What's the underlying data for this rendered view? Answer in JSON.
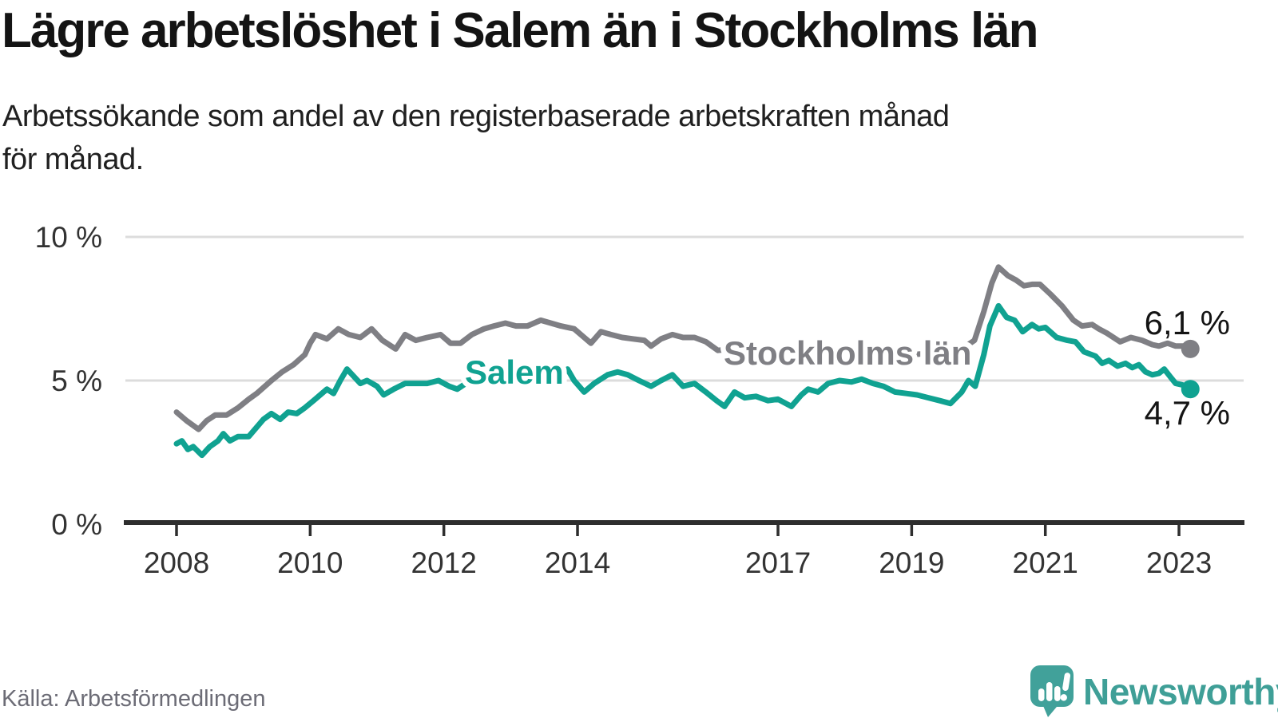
{
  "chart_data": {
    "type": "line",
    "title": "Lägre arbetslöshet i Salem än i Stockholms län",
    "subtitle_lines": [
      "Arbetssökande som andel av den registerbaserade arbetskraften månad",
      "för månad."
    ],
    "unit": "%",
    "ylim": [
      0,
      10
    ],
    "grid": "horizontal-only",
    "y_ticks": [
      {
        "value": 0,
        "label": "0 %"
      },
      {
        "value": 5,
        "label": "5 %"
      },
      {
        "value": 10,
        "label": "10 %"
      }
    ],
    "x_ticks": [
      {
        "value": 2008,
        "label": "2008"
      },
      {
        "value": 2010,
        "label": "2010"
      },
      {
        "value": 2012,
        "label": "2012"
      },
      {
        "value": 2014,
        "label": "2014"
      },
      {
        "value": 2017,
        "label": "2017"
      },
      {
        "value": 2019,
        "label": "2019"
      },
      {
        "value": 2021,
        "label": "2021"
      },
      {
        "value": 2023,
        "label": "2023"
      }
    ],
    "x_range_years": [
      2008.0,
      2023.17
    ],
    "colors": {
      "axis": "#2e2e2e",
      "grid": "#dcdcdc",
      "tick_text": "#333333"
    },
    "series": [
      {
        "name": "Stockholms län",
        "color": "#7f7f84",
        "end_label": "6,1 %",
        "end_value": 6.1,
        "points": [
          [
            2008.0,
            3.9
          ],
          [
            2008.15,
            3.6
          ],
          [
            2008.33,
            3.3
          ],
          [
            2008.45,
            3.6
          ],
          [
            2008.58,
            3.8
          ],
          [
            2008.75,
            3.8
          ],
          [
            2008.92,
            4.05
          ],
          [
            2009.08,
            4.35
          ],
          [
            2009.2,
            4.55
          ],
          [
            2009.42,
            5.0
          ],
          [
            2009.58,
            5.3
          ],
          [
            2009.75,
            5.55
          ],
          [
            2009.92,
            5.9
          ],
          [
            2010.0,
            6.3
          ],
          [
            2010.08,
            6.6
          ],
          [
            2010.25,
            6.45
          ],
          [
            2010.42,
            6.8
          ],
          [
            2010.58,
            6.6
          ],
          [
            2010.75,
            6.5
          ],
          [
            2010.92,
            6.8
          ],
          [
            2011.08,
            6.4
          ],
          [
            2011.28,
            6.1
          ],
          [
            2011.42,
            6.6
          ],
          [
            2011.58,
            6.4
          ],
          [
            2011.75,
            6.5
          ],
          [
            2011.95,
            6.6
          ],
          [
            2012.1,
            6.3
          ],
          [
            2012.25,
            6.3
          ],
          [
            2012.42,
            6.6
          ],
          [
            2012.6,
            6.8
          ],
          [
            2012.75,
            6.9
          ],
          [
            2012.92,
            7.0
          ],
          [
            2013.08,
            6.9
          ],
          [
            2013.25,
            6.9
          ],
          [
            2013.45,
            7.1
          ],
          [
            2013.6,
            7.0
          ],
          [
            2013.75,
            6.9
          ],
          [
            2013.95,
            6.8
          ],
          [
            2014.1,
            6.5
          ],
          [
            2014.2,
            6.3
          ],
          [
            2014.35,
            6.7
          ],
          [
            2014.5,
            6.6
          ],
          [
            2014.67,
            6.5
          ],
          [
            2014.83,
            6.45
          ],
          [
            2015.0,
            6.4
          ],
          [
            2015.1,
            6.2
          ],
          [
            2015.25,
            6.45
          ],
          [
            2015.42,
            6.6
          ],
          [
            2015.58,
            6.5
          ],
          [
            2015.75,
            6.5
          ],
          [
            2015.92,
            6.35
          ],
          [
            2016.1,
            6.05
          ],
          [
            2016.3,
            6.1
          ],
          [
            2016.5,
            6.1
          ],
          [
            2016.75,
            6.15
          ],
          [
            2017.0,
            6.1
          ],
          [
            2017.25,
            6.05
          ],
          [
            2017.5,
            6.0
          ],
          [
            2017.75,
            5.95
          ],
          [
            2018.0,
            5.9
          ],
          [
            2018.25,
            5.85
          ],
          [
            2018.5,
            5.85
          ],
          [
            2018.75,
            5.9
          ],
          [
            2019.0,
            5.9
          ],
          [
            2019.25,
            5.95
          ],
          [
            2019.5,
            6.0
          ],
          [
            2019.75,
            6.1
          ],
          [
            2019.94,
            6.4
          ],
          [
            2020.08,
            7.4
          ],
          [
            2020.2,
            8.4
          ],
          [
            2020.3,
            8.95
          ],
          [
            2020.44,
            8.65
          ],
          [
            2020.56,
            8.5
          ],
          [
            2020.68,
            8.3
          ],
          [
            2020.8,
            8.35
          ],
          [
            2020.92,
            8.35
          ],
          [
            2021.08,
            8.0
          ],
          [
            2021.25,
            7.6
          ],
          [
            2021.42,
            7.1
          ],
          [
            2021.55,
            6.9
          ],
          [
            2021.7,
            6.95
          ],
          [
            2021.8,
            6.8
          ],
          [
            2021.92,
            6.65
          ],
          [
            2022.12,
            6.35
          ],
          [
            2022.28,
            6.5
          ],
          [
            2022.45,
            6.4
          ],
          [
            2022.6,
            6.25
          ],
          [
            2022.7,
            6.2
          ],
          [
            2022.83,
            6.3
          ],
          [
            2022.95,
            6.2
          ],
          [
            2023.08,
            6.2
          ],
          [
            2023.17,
            6.1
          ]
        ]
      },
      {
        "name": "Salem",
        "color": "#10a291",
        "end_label": "4,7 %",
        "end_value": 4.7,
        "points": [
          [
            2008.0,
            2.8
          ],
          [
            2008.08,
            2.9
          ],
          [
            2008.17,
            2.6
          ],
          [
            2008.25,
            2.7
          ],
          [
            2008.38,
            2.4
          ],
          [
            2008.5,
            2.7
          ],
          [
            2008.62,
            2.9
          ],
          [
            2008.7,
            3.15
          ],
          [
            2008.8,
            2.9
          ],
          [
            2008.92,
            3.05
          ],
          [
            2009.08,
            3.05
          ],
          [
            2009.3,
            3.65
          ],
          [
            2009.42,
            3.85
          ],
          [
            2009.55,
            3.65
          ],
          [
            2009.67,
            3.9
          ],
          [
            2009.8,
            3.85
          ],
          [
            2009.92,
            4.05
          ],
          [
            2010.05,
            4.3
          ],
          [
            2010.25,
            4.7
          ],
          [
            2010.35,
            4.55
          ],
          [
            2010.45,
            5.0
          ],
          [
            2010.55,
            5.4
          ],
          [
            2010.67,
            5.1
          ],
          [
            2010.75,
            4.9
          ],
          [
            2010.85,
            5.0
          ],
          [
            2011.0,
            4.8
          ],
          [
            2011.1,
            4.5
          ],
          [
            2011.25,
            4.7
          ],
          [
            2011.42,
            4.9
          ],
          [
            2011.58,
            4.9
          ],
          [
            2011.75,
            4.9
          ],
          [
            2011.92,
            5.0
          ],
          [
            2012.08,
            4.8
          ],
          [
            2012.2,
            4.7
          ],
          [
            2012.33,
            4.9
          ],
          [
            2012.5,
            5.0
          ],
          [
            2012.6,
            5.1
          ],
          [
            2012.75,
            5.0
          ],
          [
            2012.92,
            5.0
          ],
          [
            2013.08,
            5.1
          ],
          [
            2013.25,
            5.2
          ],
          [
            2013.45,
            5.5
          ],
          [
            2013.58,
            5.3
          ],
          [
            2013.75,
            5.2
          ],
          [
            2013.85,
            5.4
          ],
          [
            2013.95,
            5.0
          ],
          [
            2014.1,
            4.6
          ],
          [
            2014.25,
            4.9
          ],
          [
            2014.45,
            5.2
          ],
          [
            2014.6,
            5.3
          ],
          [
            2014.75,
            5.2
          ],
          [
            2014.92,
            5.0
          ],
          [
            2015.1,
            4.8
          ],
          [
            2015.25,
            5.0
          ],
          [
            2015.42,
            5.2
          ],
          [
            2015.58,
            4.8
          ],
          [
            2015.75,
            4.9
          ],
          [
            2015.92,
            4.6
          ],
          [
            2016.08,
            4.3
          ],
          [
            2016.2,
            4.1
          ],
          [
            2016.35,
            4.6
          ],
          [
            2016.5,
            4.4
          ],
          [
            2016.67,
            4.45
          ],
          [
            2016.85,
            4.3
          ],
          [
            2017.0,
            4.35
          ],
          [
            2017.2,
            4.1
          ],
          [
            2017.35,
            4.5
          ],
          [
            2017.45,
            4.7
          ],
          [
            2017.6,
            4.6
          ],
          [
            2017.75,
            4.9
          ],
          [
            2017.92,
            5.0
          ],
          [
            2018.1,
            4.95
          ],
          [
            2018.25,
            5.05
          ],
          [
            2018.42,
            4.9
          ],
          [
            2018.58,
            4.8
          ],
          [
            2018.75,
            4.6
          ],
          [
            2018.92,
            4.55
          ],
          [
            2019.08,
            4.5
          ],
          [
            2019.25,
            4.4
          ],
          [
            2019.42,
            4.3
          ],
          [
            2019.58,
            4.2
          ],
          [
            2019.75,
            4.6
          ],
          [
            2019.85,
            5.0
          ],
          [
            2019.95,
            4.8
          ],
          [
            2020.08,
            5.9
          ],
          [
            2020.17,
            6.9
          ],
          [
            2020.3,
            7.6
          ],
          [
            2020.42,
            7.2
          ],
          [
            2020.54,
            7.1
          ],
          [
            2020.66,
            6.7
          ],
          [
            2020.8,
            6.95
          ],
          [
            2020.9,
            6.8
          ],
          [
            2021.0,
            6.85
          ],
          [
            2021.17,
            6.5
          ],
          [
            2021.33,
            6.4
          ],
          [
            2021.45,
            6.35
          ],
          [
            2021.58,
            6.0
          ],
          [
            2021.75,
            5.85
          ],
          [
            2021.85,
            5.6
          ],
          [
            2021.95,
            5.7
          ],
          [
            2022.08,
            5.5
          ],
          [
            2022.2,
            5.6
          ],
          [
            2022.3,
            5.45
          ],
          [
            2022.4,
            5.55
          ],
          [
            2022.5,
            5.3
          ],
          [
            2022.6,
            5.2
          ],
          [
            2022.7,
            5.25
          ],
          [
            2022.78,
            5.4
          ],
          [
            2022.88,
            5.1
          ],
          [
            2022.95,
            4.9
          ],
          [
            2023.05,
            4.85
          ],
          [
            2023.17,
            4.7
          ]
        ]
      }
    ]
  },
  "footer": {
    "source": "Källa: Arbetsförmedlingen",
    "brand": "Newsworthy"
  },
  "icons": {
    "logo": "newsworthy-speech-bubble-bar-chart-icon"
  }
}
